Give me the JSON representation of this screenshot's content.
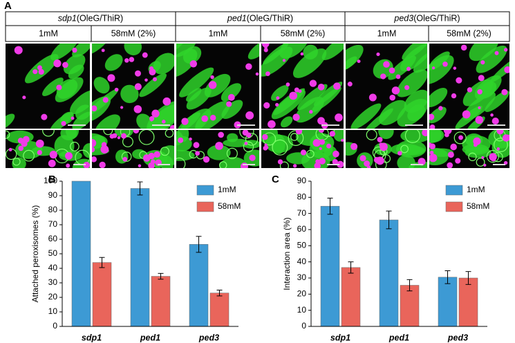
{
  "figure": {
    "panel_a": {
      "label": "A",
      "genotypes": [
        {
          "gene": "sdp1",
          "construct": "(OleG/ThiR)"
        },
        {
          "gene": "ped1",
          "construct": "(OleG/ThiR)"
        },
        {
          "gene": "ped3",
          "construct": "(OleG/ThiR)"
        }
      ],
      "conditions": [
        "1mM",
        "58mM (2%)"
      ]
    }
  },
  "chart_data": [
    {
      "type": "bar",
      "panel": "B",
      "ylabel": "Attached peroxisomes (%)",
      "categories": [
        "sdp1",
        "ped1",
        "ped3"
      ],
      "series": [
        {
          "name": "1mM",
          "color": "#3d9ad4",
          "values": [
            100,
            95,
            56.5
          ],
          "errors": [
            null,
            4.5,
            5.5
          ]
        },
        {
          "name": "58mM",
          "color": "#e9655b",
          "values": [
            44,
            34.5,
            23
          ],
          "errors": [
            3.5,
            2,
            2
          ]
        }
      ],
      "ylim": [
        0,
        100
      ],
      "yticks": [
        0,
        10,
        20,
        30,
        40,
        50,
        60,
        70,
        80,
        90,
        100
      ],
      "legend": "upper right"
    },
    {
      "type": "bar",
      "panel": "C",
      "ylabel": "Interaction area (%)",
      "categories": [
        "sdp1",
        "ped1",
        "ped3"
      ],
      "series": [
        {
          "name": "1mM",
          "color": "#3d9ad4",
          "values": [
            74.5,
            66,
            30.5
          ],
          "errors": [
            5,
            5.5,
            4
          ]
        },
        {
          "name": "58mM",
          "color": "#e9655b",
          "values": [
            36.5,
            25.5,
            30
          ],
          "errors": [
            3.5,
            3.5,
            4
          ]
        }
      ],
      "ylim": [
        0,
        90
      ],
      "yticks": [
        0,
        10,
        20,
        30,
        40,
        50,
        60,
        70,
        80,
        90
      ],
      "legend": "upper right"
    }
  ]
}
